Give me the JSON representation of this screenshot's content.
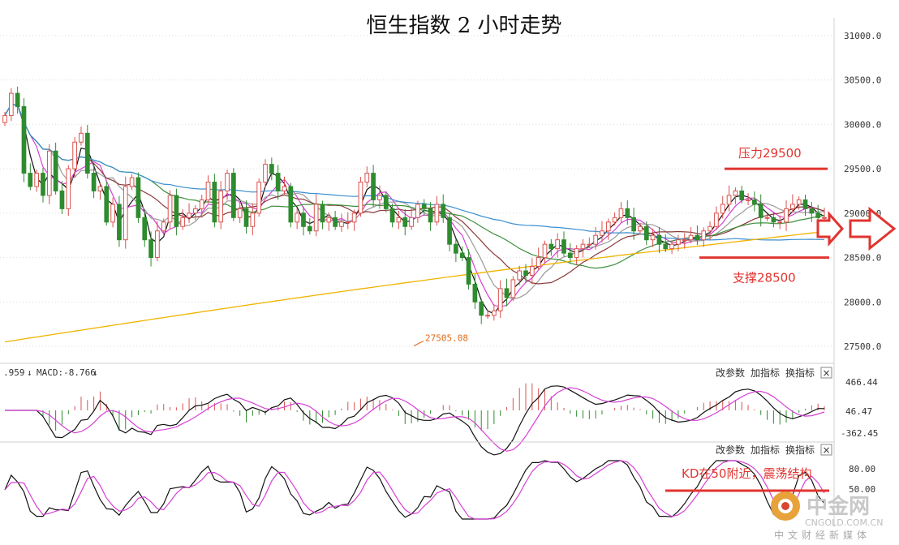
{
  "chart_data": {
    "type": "candlestick",
    "title": "恒生指数 2 小时走势",
    "price_axis": {
      "range": [
        27400,
        31200
      ],
      "ticks": [
        {
          "value": 31000,
          "label": "31000.0"
        },
        {
          "value": 30500,
          "label": "30500.0"
        },
        {
          "value": 30000,
          "label": "30000.0"
        },
        {
          "value": 29500,
          "label": "29500.0"
        },
        {
          "value": 29000,
          "label": "29000.0"
        },
        {
          "value": 28500,
          "label": "28500.0"
        },
        {
          "value": 28000,
          "label": "28000.0"
        },
        {
          "value": 27500,
          "label": "27500.0"
        }
      ]
    },
    "candles_close": [
      30100,
      30350,
      30200,
      29450,
      29300,
      29450,
      29200,
      29700,
      29250,
      29050,
      29500,
      29800,
      29900,
      29450,
      29250,
      29300,
      28900,
      29100,
      28700,
      29300,
      29400,
      28950,
      28700,
      28500,
      28800,
      28900,
      29200,
      28850,
      28950,
      29000,
      29050,
      29150,
      29350,
      28900,
      29250,
      29450,
      28950,
      29050,
      28850,
      29000,
      29350,
      29550,
      29450,
      29250,
      29300,
      28900,
      29000,
      28850,
      28800,
      29100,
      28900,
      28950,
      28850,
      28900,
      28900,
      29000,
      29350,
      29450,
      29150,
      29200,
      29050,
      28900,
      28950,
      28850,
      28950,
      29100,
      29050,
      28900,
      29100,
      28950,
      28650,
      28550,
      28500,
      28200,
      28000,
      27850,
      27850,
      27900,
      28150,
      28050,
      28250,
      28350,
      28300,
      28400,
      28500,
      28650,
      28600,
      28700,
      28550,
      28500,
      28600,
      28650,
      28650,
      28750,
      28800,
      28900,
      28950,
      29050,
      28950,
      28800,
      28850,
      28700,
      28750,
      28650,
      28600,
      28650,
      28700,
      28700,
      28750,
      28700,
      28800,
      28850,
      29000,
      29100,
      29200,
      29250,
      29150,
      29150,
      29100,
      28950,
      28950,
      28900,
      28900,
      29050,
      29100,
      29150,
      29050,
      29000,
      28950,
      28950
    ],
    "annotations": {
      "resistance": {
        "label": "压力29500",
        "value": 29500
      },
      "support": {
        "label": "支撑28500",
        "value": 28500
      },
      "low_point": {
        "label": "27505.08",
        "value": 27505.08
      }
    },
    "macd": {
      "label_prefix": ".959",
      "macd_label": "MACD:-8.766",
      "ticks": [
        "466.44",
        "46.47",
        "-362.45"
      ]
    },
    "kd": {
      "ticks": [
        "80.00",
        "50.00"
      ],
      "note": "KD在50附近，震荡结构"
    }
  },
  "toolbar_macd": {
    "change_params": "改参数",
    "add_indicator": "加指标",
    "switch_indicator": "换指标",
    "close": "×"
  },
  "toolbar_kd": {
    "change_params": "改参数",
    "add_indicator": "加指标",
    "switch_indicator": "换指标",
    "close": "×"
  },
  "watermark": {
    "cn": "中金网",
    "en": "CNGOLD.COM.CN",
    "sub": "中文财经新媒体"
  },
  "colors": {
    "up": "#d9534f",
    "down": "#2e8b2e",
    "ma_black": "#111111",
    "ma_magenta": "#d63fd6",
    "ma_gray": "#9a9a9a",
    "ma_brown": "#8b3a3a",
    "ma_green": "#3c8f3c",
    "ma_blue": "#3b8fd1",
    "ma_orange": "#f0b400",
    "annotation_red": "#e0342f"
  }
}
